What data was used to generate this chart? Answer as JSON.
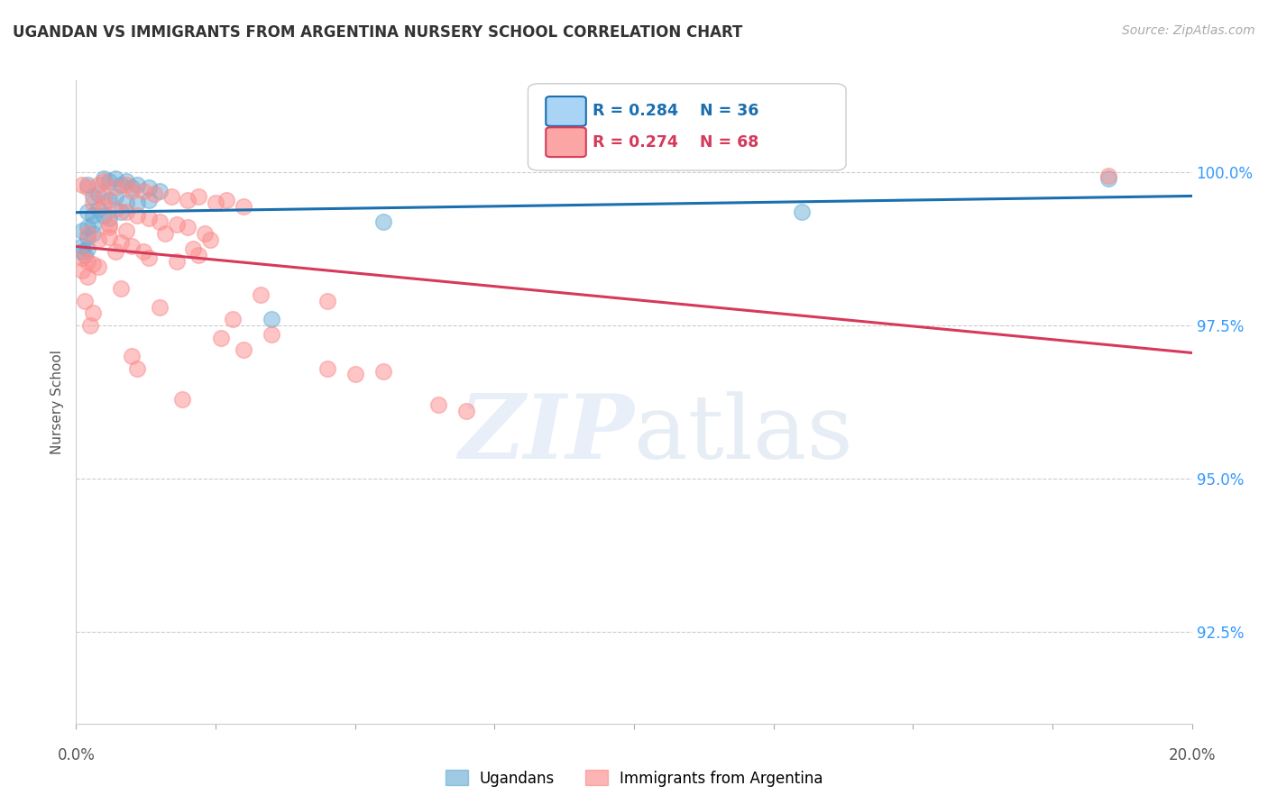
{
  "title": "UGANDAN VS IMMIGRANTS FROM ARGENTINA NURSERY SCHOOL CORRELATION CHART",
  "source": "Source: ZipAtlas.com",
  "ylabel": "Nursery School",
  "legend_blue_r": "R = 0.284",
  "legend_blue_n": "N = 36",
  "legend_pink_r": "R = 0.274",
  "legend_pink_n": "N = 68",
  "legend_blue_label": "Ugandans",
  "legend_pink_label": "Immigrants from Argentina",
  "blue_color": "#6baed6",
  "pink_color": "#fc8d8d",
  "trendline_blue": "#1a6faf",
  "trendline_pink": "#d63a5a",
  "watermark_zip": "ZIP",
  "watermark_atlas": "atlas",
  "xlim": [
    0,
    20
  ],
  "ylim": [
    91.0,
    101.5
  ],
  "ytick_vals": [
    92.5,
    95.0,
    97.5,
    100.0
  ],
  "ytick_labels": [
    "92.5%",
    "95.0%",
    "97.5%",
    "100.0%"
  ],
  "blue_scatter": [
    [
      0.2,
      99.8
    ],
    [
      0.5,
      99.9
    ],
    [
      0.6,
      99.85
    ],
    [
      0.7,
      99.9
    ],
    [
      0.8,
      99.8
    ],
    [
      0.9,
      99.85
    ],
    [
      1.0,
      99.75
    ],
    [
      1.1,
      99.8
    ],
    [
      1.3,
      99.75
    ],
    [
      1.5,
      99.7
    ],
    [
      0.3,
      99.6
    ],
    [
      0.4,
      99.65
    ],
    [
      0.6,
      99.55
    ],
    [
      0.7,
      99.6
    ],
    [
      0.9,
      99.5
    ],
    [
      1.1,
      99.5
    ],
    [
      1.3,
      99.55
    ],
    [
      0.2,
      99.35
    ],
    [
      0.3,
      99.3
    ],
    [
      0.4,
      99.4
    ],
    [
      0.5,
      99.3
    ],
    [
      0.6,
      99.25
    ],
    [
      0.8,
      99.35
    ],
    [
      0.2,
      99.1
    ],
    [
      0.3,
      99.15
    ],
    [
      0.1,
      99.05
    ],
    [
      0.2,
      98.95
    ],
    [
      0.3,
      99.0
    ],
    [
      0.1,
      98.8
    ],
    [
      0.2,
      98.75
    ],
    [
      0.1,
      98.7
    ],
    [
      0.15,
      98.65
    ],
    [
      5.5,
      99.2
    ],
    [
      3.5,
      97.6
    ],
    [
      13.0,
      99.35
    ],
    [
      18.5,
      99.9
    ]
  ],
  "pink_scatter": [
    [
      0.1,
      99.8
    ],
    [
      0.2,
      99.75
    ],
    [
      0.4,
      99.8
    ],
    [
      0.5,
      99.85
    ],
    [
      0.7,
      99.75
    ],
    [
      0.9,
      99.8
    ],
    [
      1.0,
      99.7
    ],
    [
      1.2,
      99.7
    ],
    [
      1.4,
      99.65
    ],
    [
      1.7,
      99.6
    ],
    [
      2.0,
      99.55
    ],
    [
      2.2,
      99.6
    ],
    [
      2.5,
      99.5
    ],
    [
      2.7,
      99.55
    ],
    [
      3.0,
      99.45
    ],
    [
      0.3,
      99.5
    ],
    [
      0.5,
      99.45
    ],
    [
      0.7,
      99.4
    ],
    [
      0.9,
      99.35
    ],
    [
      1.1,
      99.3
    ],
    [
      1.3,
      99.25
    ],
    [
      1.5,
      99.2
    ],
    [
      1.8,
      99.15
    ],
    [
      2.0,
      99.1
    ],
    [
      2.3,
      99.0
    ],
    [
      0.2,
      99.0
    ],
    [
      0.4,
      98.9
    ],
    [
      0.6,
      98.95
    ],
    [
      0.8,
      98.85
    ],
    [
      1.0,
      98.8
    ],
    [
      1.2,
      98.7
    ],
    [
      0.1,
      98.6
    ],
    [
      0.2,
      98.55
    ],
    [
      0.3,
      98.5
    ],
    [
      0.1,
      98.4
    ],
    [
      0.2,
      98.3
    ],
    [
      0.15,
      97.9
    ],
    [
      0.3,
      97.7
    ],
    [
      1.5,
      97.8
    ],
    [
      2.8,
      97.6
    ],
    [
      0.25,
      97.5
    ],
    [
      4.5,
      96.8
    ],
    [
      5.0,
      96.7
    ],
    [
      5.5,
      96.75
    ],
    [
      1.9,
      96.3
    ],
    [
      6.5,
      96.2
    ],
    [
      2.6,
      97.3
    ],
    [
      3.5,
      97.35
    ],
    [
      3.0,
      97.1
    ],
    [
      7.0,
      96.1
    ],
    [
      0.6,
      99.1
    ],
    [
      0.8,
      98.1
    ],
    [
      1.0,
      97.0
    ],
    [
      1.1,
      96.8
    ],
    [
      2.2,
      98.65
    ],
    [
      3.3,
      98.0
    ],
    [
      4.5,
      97.9
    ],
    [
      1.8,
      98.55
    ],
    [
      0.9,
      99.05
    ],
    [
      1.6,
      99.0
    ],
    [
      2.4,
      98.9
    ],
    [
      2.1,
      98.75
    ],
    [
      0.7,
      98.7
    ],
    [
      1.3,
      98.6
    ],
    [
      0.4,
      98.45
    ],
    [
      18.5,
      99.95
    ],
    [
      0.5,
      99.6
    ],
    [
      0.6,
      99.15
    ]
  ]
}
